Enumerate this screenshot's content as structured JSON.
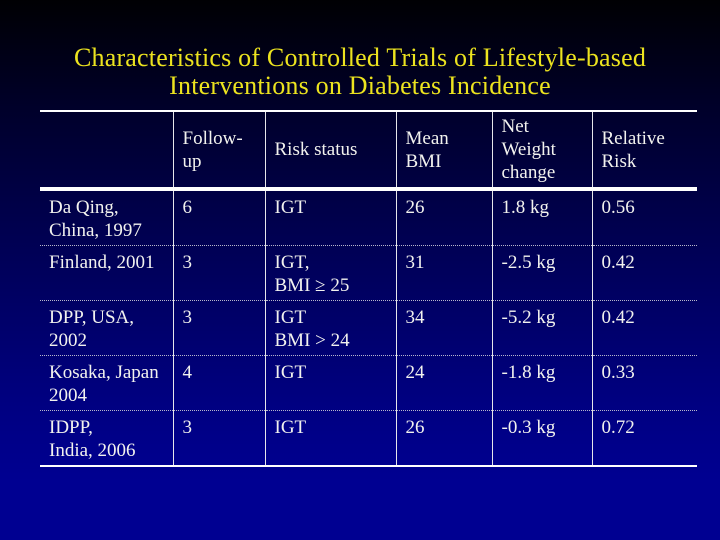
{
  "slide": {
    "title_lines": [
      "Characteristics of Controlled Trials of Lifestyle-based",
      "Interventions on Diabetes Incidence"
    ]
  },
  "table": {
    "headers": [
      [],
      [
        "Follow-",
        "up"
      ],
      [
        "Risk status"
      ],
      [
        "Mean",
        "BMI"
      ],
      [
        "Net",
        "Weight",
        "change"
      ],
      [
        "Relative",
        "Risk"
      ]
    ],
    "rows": [
      [
        [
          "Da Qing,",
          "China, 1997"
        ],
        [
          "6"
        ],
        [
          "IGT"
        ],
        [
          "26"
        ],
        [
          "1.8 kg"
        ],
        [
          "0.56"
        ]
      ],
      [
        [
          "Finland, 2001"
        ],
        [
          "3"
        ],
        [
          "IGT,",
          "BMI ≥ 25"
        ],
        [
          "31"
        ],
        [
          "-2.5 kg"
        ],
        [
          "0.42"
        ]
      ],
      [
        [
          "DPP, USA,",
          "2002"
        ],
        [
          "3"
        ],
        [
          "IGT",
          "BMI > 24"
        ],
        [
          "34"
        ],
        [
          "-5.2 kg"
        ],
        [
          "0.42"
        ]
      ],
      [
        [
          "Kosaka, Japan",
          "2004"
        ],
        [
          "4"
        ],
        [
          "IGT"
        ],
        [
          "24"
        ],
        [
          "-1.8 kg"
        ],
        [
          "0.33"
        ]
      ],
      [
        [
          "IDPP,",
          "India, 2006"
        ],
        [
          "3"
        ],
        [
          "IGT"
        ],
        [
          "26"
        ],
        [
          "-0.3 kg"
        ],
        [
          "0.72"
        ]
      ]
    ]
  },
  "colors": {
    "background_top": "#000003",
    "background_mid": "#000055",
    "background_bottom": "#000091",
    "title": "#ece31f",
    "text": "#f2f2ee",
    "border": "#ffffff",
    "column_line": "#e6e6ea",
    "row_dotted": "#b8b8cc"
  }
}
